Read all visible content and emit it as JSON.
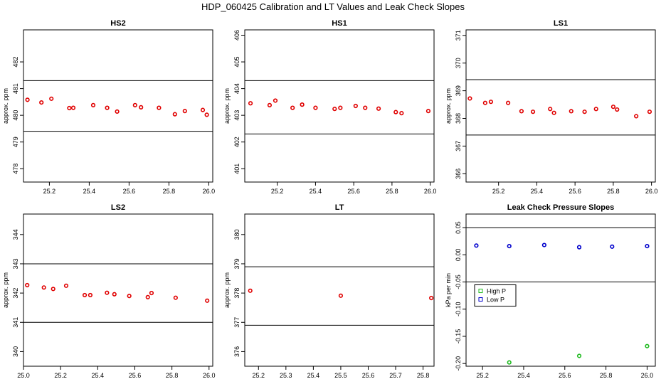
{
  "figure_title": "HDP_060425  Calibration and LT Values and Leak Check Slopes",
  "colors": {
    "points": "#e00000",
    "high_p": "#22bb22",
    "low_p": "#0000cc",
    "axis": "#000000"
  },
  "chart_data": [
    {
      "type": "scatter",
      "title": "HS2",
      "ylabel": "approx. ppm",
      "xlim": [
        25.07,
        26.02
      ],
      "ylim": [
        477.5,
        483.2
      ],
      "xticks": [
        25.2,
        25.4,
        25.6,
        25.8,
        26.0
      ],
      "xtick_labels": [
        "25.2",
        "25.4",
        "25.6",
        "25.8",
        "26.0"
      ],
      "yticks": [
        478,
        479,
        480,
        481,
        482
      ],
      "ytick_labels": [
        "478",
        "479",
        "480",
        "481",
        "482"
      ],
      "hlines": [
        481.3,
        479.4
      ],
      "series": [
        {
          "name": "HS2",
          "x": [
            25.09,
            25.16,
            25.21,
            25.3,
            25.32,
            25.42,
            25.49,
            25.54,
            25.63,
            25.66,
            25.75,
            25.83,
            25.88,
            25.97,
            25.99
          ],
          "y": [
            480.58,
            480.48,
            480.62,
            480.27,
            480.28,
            480.38,
            480.28,
            480.14,
            480.38,
            480.3,
            480.28,
            480.04,
            480.16,
            480.2,
            480.02
          ]
        }
      ]
    },
    {
      "type": "scatter",
      "title": "HS1",
      "ylabel": "approx. ppm",
      "xlim": [
        25.03,
        26.02
      ],
      "ylim": [
        400.5,
        406.2
      ],
      "xticks": [
        25.2,
        25.4,
        25.6,
        25.8,
        26.0
      ],
      "xtick_labels": [
        "25.2",
        "25.4",
        "25.6",
        "25.8",
        "26.0"
      ],
      "yticks": [
        401,
        402,
        403,
        404,
        405,
        406
      ],
      "ytick_labels": [
        "401",
        "402",
        "403",
        "404",
        "405",
        "406"
      ],
      "hlines": [
        404.3,
        402.3
      ],
      "series": [
        {
          "name": "HS1",
          "x": [
            25.06,
            25.16,
            25.19,
            25.28,
            25.33,
            25.4,
            25.5,
            25.53,
            25.61,
            25.66,
            25.73,
            25.82,
            25.85,
            25.99
          ],
          "y": [
            403.45,
            403.38,
            403.55,
            403.28,
            403.4,
            403.28,
            403.24,
            403.28,
            403.35,
            403.28,
            403.25,
            403.12,
            403.08,
            403.16
          ]
        }
      ]
    },
    {
      "type": "scatter",
      "title": "LS1",
      "ylabel": "approx. ppm",
      "xlim": [
        25.03,
        26.02
      ],
      "ylim": [
        365.7,
        371.2
      ],
      "xticks": [
        25.2,
        25.4,
        25.6,
        25.8,
        26.0
      ],
      "xtick_labels": [
        "25.2",
        "25.4",
        "25.6",
        "25.8",
        "26.0"
      ],
      "yticks": [
        366,
        367,
        368,
        369,
        370,
        371
      ],
      "ytick_labels": [
        "366",
        "367",
        "368",
        "369",
        "370",
        "371"
      ],
      "hlines": [
        369.4,
        367.4
      ],
      "series": [
        {
          "name": "LS1",
          "x": [
            25.05,
            25.13,
            25.16,
            25.25,
            25.32,
            25.38,
            25.47,
            25.49,
            25.58,
            25.65,
            25.71,
            25.8,
            25.82,
            25.92,
            25.99
          ],
          "y": [
            368.72,
            368.56,
            368.6,
            368.56,
            368.26,
            368.24,
            368.34,
            368.2,
            368.26,
            368.24,
            368.34,
            368.42,
            368.32,
            368.08,
            368.24
          ]
        }
      ]
    },
    {
      "type": "scatter",
      "title": "LS2",
      "ylabel": "approx. ppm",
      "xlim": [
        25.0,
        26.02
      ],
      "ylim": [
        339.5,
        344.7
      ],
      "xticks": [
        25.0,
        25.2,
        25.4,
        25.6,
        25.8,
        26.0
      ],
      "xtick_labels": [
        "25.0",
        "25.2",
        "25.4",
        "25.6",
        "25.8",
        "26.0"
      ],
      "yticks": [
        340,
        341,
        342,
        343,
        344
      ],
      "ytick_labels": [
        "340",
        "341",
        "342",
        "343",
        "344"
      ],
      "hlines": [
        343.0,
        341.0
      ],
      "series": [
        {
          "name": "LS2",
          "x": [
            25.02,
            25.11,
            25.16,
            25.23,
            25.33,
            25.36,
            25.45,
            25.49,
            25.57,
            25.67,
            25.69,
            25.82,
            25.99
          ],
          "y": [
            342.27,
            342.19,
            342.14,
            342.25,
            341.93,
            341.93,
            342.01,
            341.96,
            341.9,
            341.86,
            342.0,
            341.84,
            341.74
          ]
        }
      ]
    },
    {
      "type": "scatter",
      "title": "LT",
      "ylabel": "approx. ppm",
      "xlim": [
        25.15,
        25.84
      ],
      "ylim": [
        375.5,
        380.7
      ],
      "xticks": [
        25.2,
        25.3,
        25.4,
        25.5,
        25.6,
        25.7,
        25.8
      ],
      "xtick_labels": [
        "25.2",
        "25.3",
        "25.4",
        "25.5",
        "25.6",
        "25.7",
        "25.8"
      ],
      "yticks": [
        376,
        377,
        378,
        379,
        380
      ],
      "ytick_labels": [
        "376",
        "377",
        "378",
        "379",
        "380"
      ],
      "hlines": [
        378.9,
        376.9
      ],
      "series": [
        {
          "name": "LT",
          "x": [
            25.17,
            25.5,
            25.83
          ],
          "y": [
            378.08,
            377.91,
            377.83
          ]
        }
      ]
    },
    {
      "type": "scatter",
      "title": "Leak Check Pressure Slopes",
      "ylabel": "kPa per min",
      "xlim": [
        25.12,
        26.04
      ],
      "ylim": [
        -0.205,
        0.075
      ],
      "xticks": [
        25.2,
        25.4,
        25.6,
        25.8,
        26.0
      ],
      "xtick_labels": [
        "25.2",
        "25.4",
        "25.6",
        "25.8",
        "26.0"
      ],
      "yticks": [
        -0.2,
        -0.15,
        -0.1,
        -0.05,
        0.0,
        0.05
      ],
      "ytick_labels": [
        "-0.20",
        "-0.15",
        "-0.10",
        "-0.05",
        "0.00",
        "0.05"
      ],
      "hlines": [
        0.05,
        -0.05
      ],
      "legend": {
        "position": "left",
        "entries": [
          "High P",
          "Low P"
        ]
      },
      "series": [
        {
          "name": "High P",
          "x": [
            25.33,
            25.67,
            26.0
          ],
          "y": [
            -0.198,
            -0.186,
            -0.168
          ]
        },
        {
          "name": "Low P",
          "x": [
            25.17,
            25.33,
            25.5,
            25.67,
            25.83,
            26.0
          ],
          "y": [
            0.017,
            0.016,
            0.018,
            0.014,
            0.015,
            0.016
          ]
        }
      ]
    }
  ]
}
